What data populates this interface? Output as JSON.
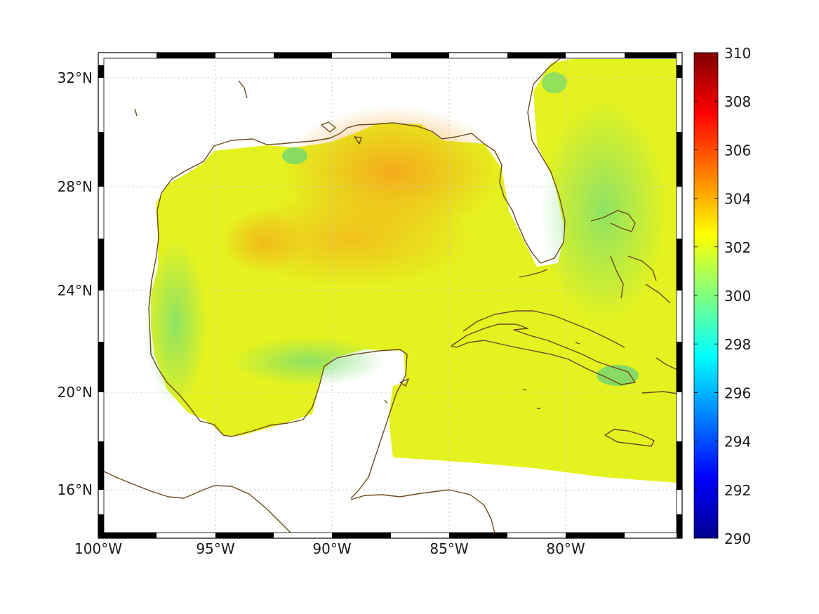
{
  "map": {
    "region": "Gulf of Mexico and Caribbean",
    "lon_range": [
      -100,
      -75
    ],
    "lat_range": [
      14.2,
      32.9
    ],
    "x_ticks": [
      {
        "lon": -100,
        "label": "100°W"
      },
      {
        "lon": -95,
        "label": "95°W"
      },
      {
        "lon": -90,
        "label": "90°W"
      },
      {
        "lon": -85,
        "label": "85°W"
      },
      {
        "lon": -80,
        "label": "80°W"
      }
    ],
    "y_ticks": [
      {
        "lat": 16,
        "label": "16°N"
      },
      {
        "lat": 20,
        "label": "20°N"
      },
      {
        "lat": 24,
        "label": "24°N"
      },
      {
        "lat": 28,
        "label": "28°N"
      },
      {
        "lat": 32,
        "label": "32°N"
      }
    ],
    "grid": true,
    "frame": "alternating black/white",
    "coastline_color": "#6b4a1c"
  },
  "colorbar": {
    "min": 290,
    "max": 310,
    "colormap": "jet",
    "ticks": [
      {
        "value": 290,
        "label": "290"
      },
      {
        "value": 292,
        "label": "292"
      },
      {
        "value": 294,
        "label": "294"
      },
      {
        "value": 296,
        "label": "296"
      },
      {
        "value": 298,
        "label": "298"
      },
      {
        "value": 300,
        "label": "300"
      },
      {
        "value": 302,
        "label": "302"
      },
      {
        "value": 304,
        "label": "304"
      },
      {
        "value": 306,
        "label": "306"
      },
      {
        "value": 308,
        "label": "308"
      },
      {
        "value": 310,
        "label": "310"
      }
    ]
  }
}
